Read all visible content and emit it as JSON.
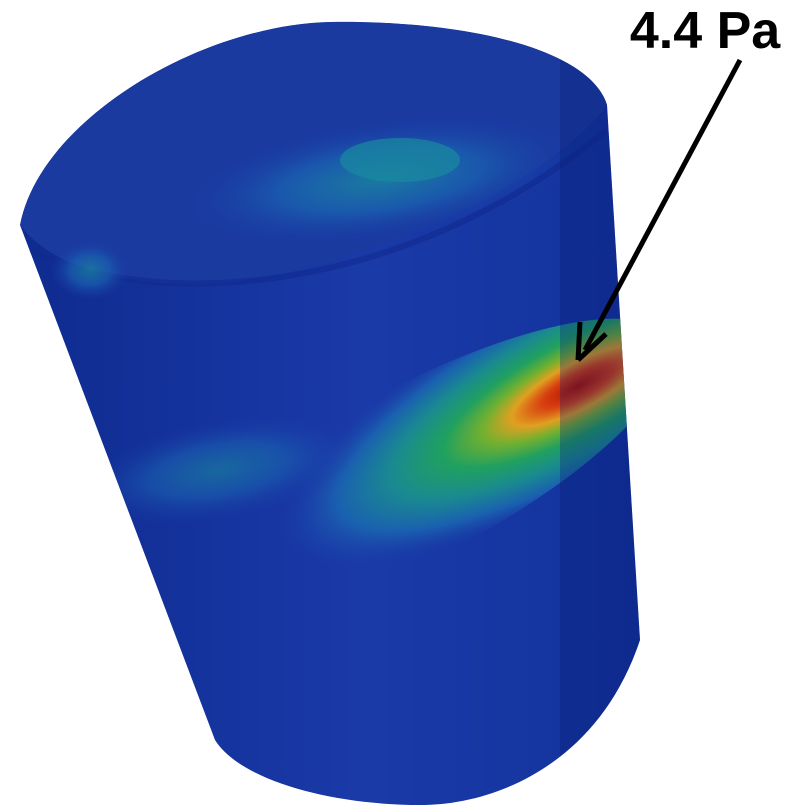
{
  "annotation": {
    "label": "4.4 Pa"
  }
}
